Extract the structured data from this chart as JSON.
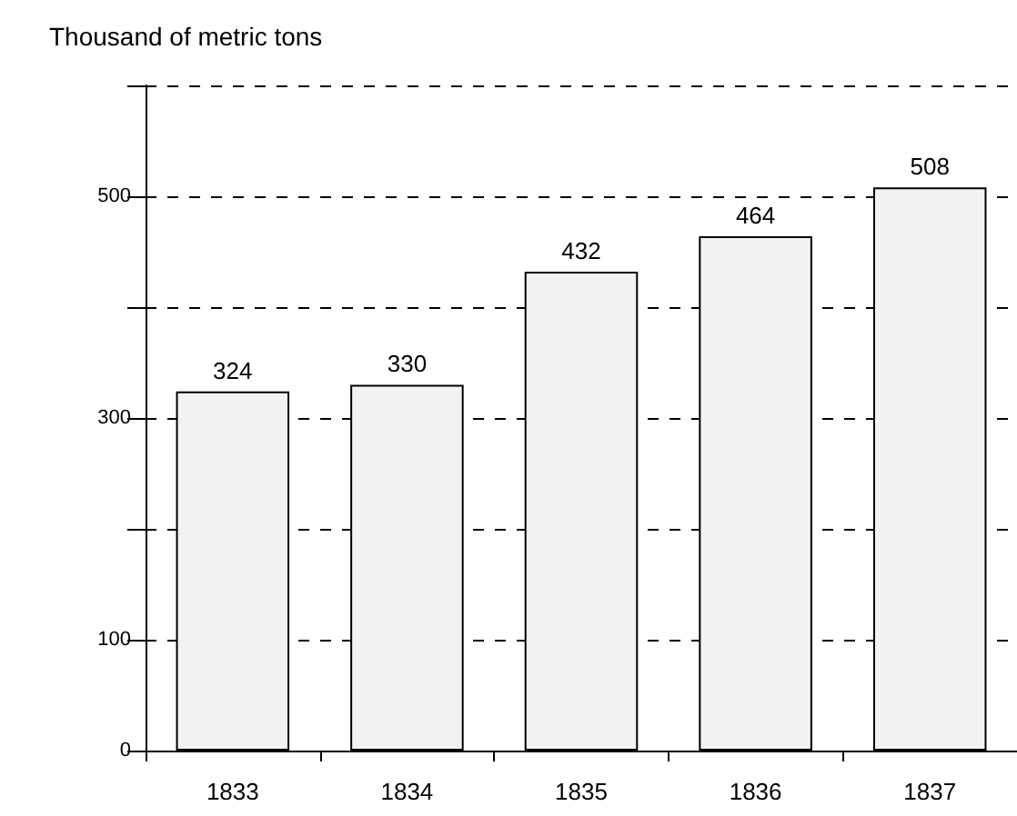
{
  "chart_data": {
    "type": "bar",
    "ylabel": "Thousand of metric tons",
    "categories": [
      "1833",
      "1834",
      "1835",
      "1836",
      "1837"
    ],
    "values": [
      324,
      330,
      432,
      464,
      508
    ],
    "color": "#f2f2f2",
    "data_labels": true,
    "ylim": [
      0,
      600
    ],
    "yticks": [
      0,
      100,
      {
        "value": 200,
        "label": null
      },
      300,
      {
        "value": 400,
        "label": null
      },
      500,
      {
        "value": 600,
        "label": null
      }
    ],
    "grid": "y"
  }
}
